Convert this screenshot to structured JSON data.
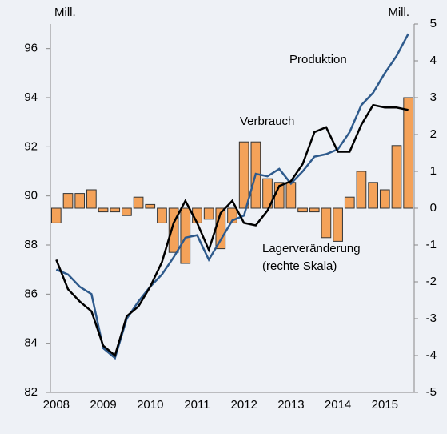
{
  "chart_data": {
    "type": "combo",
    "y_unit_label": "Mill.",
    "y2_unit_label": "Mill.",
    "categories": [
      "2008",
      null,
      null,
      null,
      "2009",
      null,
      null,
      null,
      "2010",
      null,
      null,
      null,
      "2011",
      null,
      null,
      null,
      "2012",
      null,
      null,
      null,
      "2013",
      null,
      null,
      null,
      "2014",
      null,
      null,
      null,
      "2015",
      null,
      null
    ],
    "series": [
      {
        "name": "Lagerveränderung",
        "type": "bar",
        "axis": "y2",
        "color": "#f4a259",
        "values": [
          -0.4,
          0.4,
          0.4,
          0.5,
          -0.1,
          -0.1,
          -0.2,
          0.3,
          0.1,
          -0.4,
          -1.2,
          -1.5,
          -0.4,
          -0.3,
          -1.1,
          -0.4,
          1.8,
          1.8,
          0.8,
          0.7,
          0.7,
          -0.1,
          -0.1,
          -0.8,
          -0.9,
          0.3,
          1.0,
          0.7,
          0.5,
          1.7,
          3.0
        ]
      },
      {
        "name": "Produktion",
        "type": "line",
        "axis": "y",
        "color": "#2e5a8c",
        "values": [
          87.0,
          86.8,
          86.3,
          86.0,
          83.8,
          83.4,
          85.0,
          85.7,
          86.3,
          86.8,
          87.5,
          88.3,
          88.4,
          87.4,
          88.2,
          89.0,
          89.2,
          90.9,
          90.8,
          91.1,
          90.5,
          91.0,
          91.6,
          91.7,
          91.9,
          92.6,
          93.7,
          94.2,
          95.0,
          95.7,
          96.6
        ]
      },
      {
        "name": "Verbrauch",
        "type": "line",
        "axis": "y",
        "color": "#000000",
        "values": [
          87.4,
          86.2,
          85.7,
          85.3,
          83.9,
          83.5,
          85.1,
          85.5,
          86.3,
          87.3,
          88.9,
          89.8,
          88.9,
          87.8,
          89.3,
          89.8,
          88.9,
          88.8,
          89.4,
          90.4,
          90.6,
          91.3,
          92.6,
          92.8,
          91.8,
          91.8,
          92.9,
          93.7,
          93.6,
          93.6,
          93.5
        ]
      }
    ],
    "annotation": "(rechte Skala)",
    "ylim": [
      82,
      97
    ],
    "yticks": [
      82,
      84,
      86,
      88,
      90,
      92,
      94,
      96
    ],
    "y2lim": [
      -5,
      5
    ],
    "y2ticks": [
      -5,
      -4,
      -3,
      -2,
      -1,
      0,
      1,
      2,
      3,
      4,
      5
    ]
  }
}
